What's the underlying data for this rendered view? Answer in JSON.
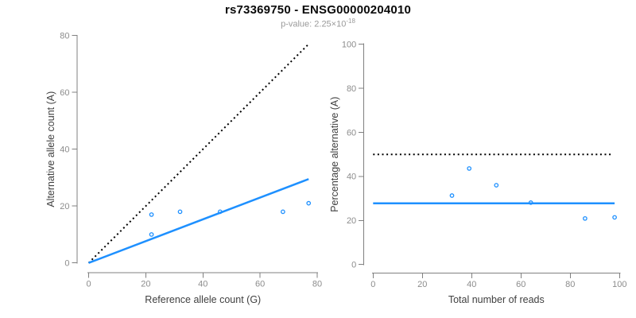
{
  "header": {
    "title": "rs73369750 - ENSG00000204010",
    "pvalue_base": "p-value: 2.25×10",
    "pvalue_exponent": "-18"
  },
  "colors": {
    "accent_blue": "#1E90FF",
    "dotted_black": "#000000",
    "axis_line_gray": "#808080",
    "tick_label_gray": "#8C8C8C",
    "axis_title_dark": "#404040",
    "title_black": "#0A0A0A",
    "subtitle_gray": "#9A9A9A",
    "background": "#FFFFFF"
  },
  "chart_data": [
    {
      "type": "scatter",
      "name": "left-plot",
      "title": "",
      "xlabel": "Reference allele count (G)",
      "ylabel": "Alternative allele count (A)",
      "xlim": [
        0,
        80
      ],
      "ylim": [
        0,
        80
      ],
      "xticks": [
        0,
        20,
        40,
        60,
        80
      ],
      "yticks": [
        0,
        20,
        40,
        60,
        80
      ],
      "grid": false,
      "legend": "none",
      "points": [
        [
          22,
          10
        ],
        [
          22,
          17
        ],
        [
          32,
          18
        ],
        [
          46,
          18
        ],
        [
          68,
          18
        ],
        [
          77,
          21
        ]
      ],
      "lines": [
        {
          "name": "identity-line",
          "style": "dotted",
          "color": "#000000",
          "width": 2,
          "x1": 0,
          "y1": 0,
          "x2": 77,
          "y2": 77
        },
        {
          "name": "fit-line",
          "style": "solid",
          "color": "#1E90FF",
          "width": 2.5,
          "x1": 0,
          "y1": 0,
          "x2": 77,
          "y2": 29.5
        }
      ]
    },
    {
      "type": "scatter",
      "name": "right-plot",
      "title": "",
      "xlabel": "Total number of reads",
      "ylabel": "Percentage alternative (A)",
      "xlim": [
        0,
        100
      ],
      "ylim": [
        0,
        100
      ],
      "xticks": [
        0,
        20,
        40,
        60,
        80,
        100
      ],
      "yticks": [
        0,
        20,
        40,
        60,
        80,
        100
      ],
      "grid": false,
      "legend": "none",
      "points": [
        [
          32,
          31.3
        ],
        [
          39,
          43.6
        ],
        [
          50,
          36
        ],
        [
          64,
          28.1
        ],
        [
          86,
          20.9
        ],
        [
          98,
          21.4
        ]
      ],
      "lines": [
        {
          "name": "expected-50pct-line",
          "style": "dotted",
          "color": "#000000",
          "width": 2,
          "x1": 0,
          "y1": 50,
          "x2": 96.5,
          "y2": 50
        },
        {
          "name": "mean-ratio-line",
          "style": "solid",
          "color": "#1E90FF",
          "width": 2.5,
          "x1": 0,
          "y1": 27.8,
          "x2": 98,
          "y2": 27.8
        }
      ]
    }
  ]
}
